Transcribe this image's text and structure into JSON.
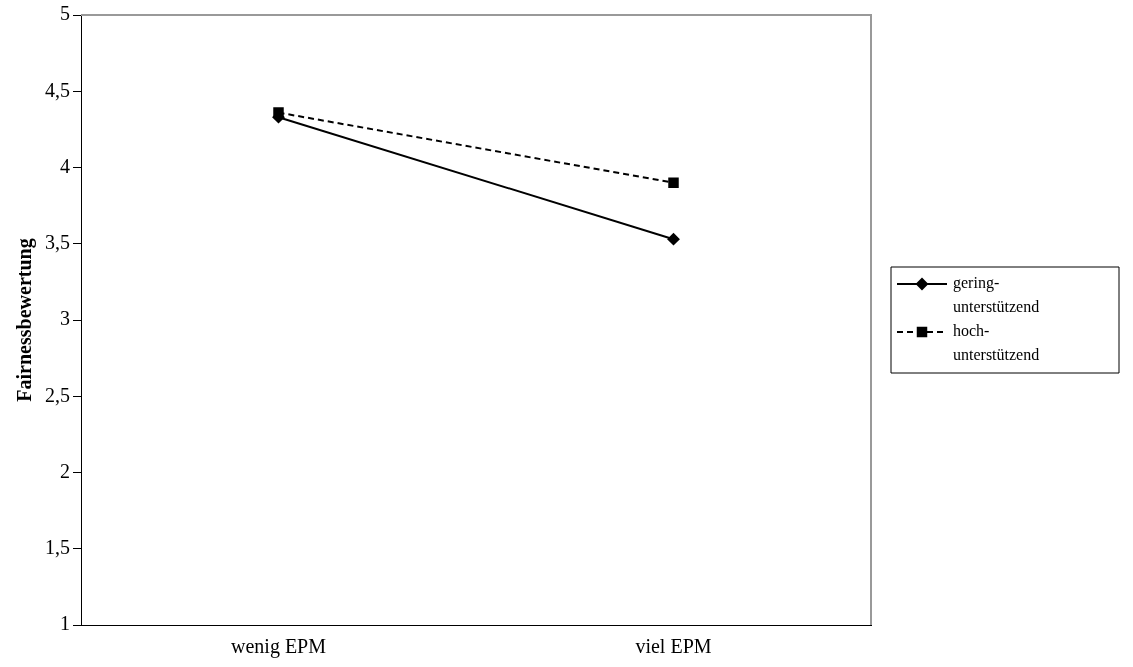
{
  "chart_data": {
    "type": "line",
    "ylabel": "Fairnessbewertung",
    "categories": [
      "wenig EPM",
      "viel EPM"
    ],
    "series": [
      {
        "name": "gering-unterstützend",
        "color": "#000000",
        "values": [
          4.33,
          3.53
        ],
        "marker": "diamond",
        "line_style": "solid"
      },
      {
        "name": "hoch-unterstützend",
        "color": "#000000",
        "values": [
          4.36,
          3.9
        ],
        "marker": "square",
        "line_style": "dashed"
      }
    ],
    "ylim": [
      1,
      5
    ],
    "yticks": [
      1,
      {
        "value": 1.5,
        "label": "1,5"
      },
      2,
      {
        "value": 2.5,
        "label": "2,5"
      },
      3,
      {
        "value": 3.5,
        "label": "3,5"
      },
      4,
      {
        "value": 4.5,
        "label": "4,5"
      },
      5
    ],
    "grid": false,
    "legend": "right"
  }
}
